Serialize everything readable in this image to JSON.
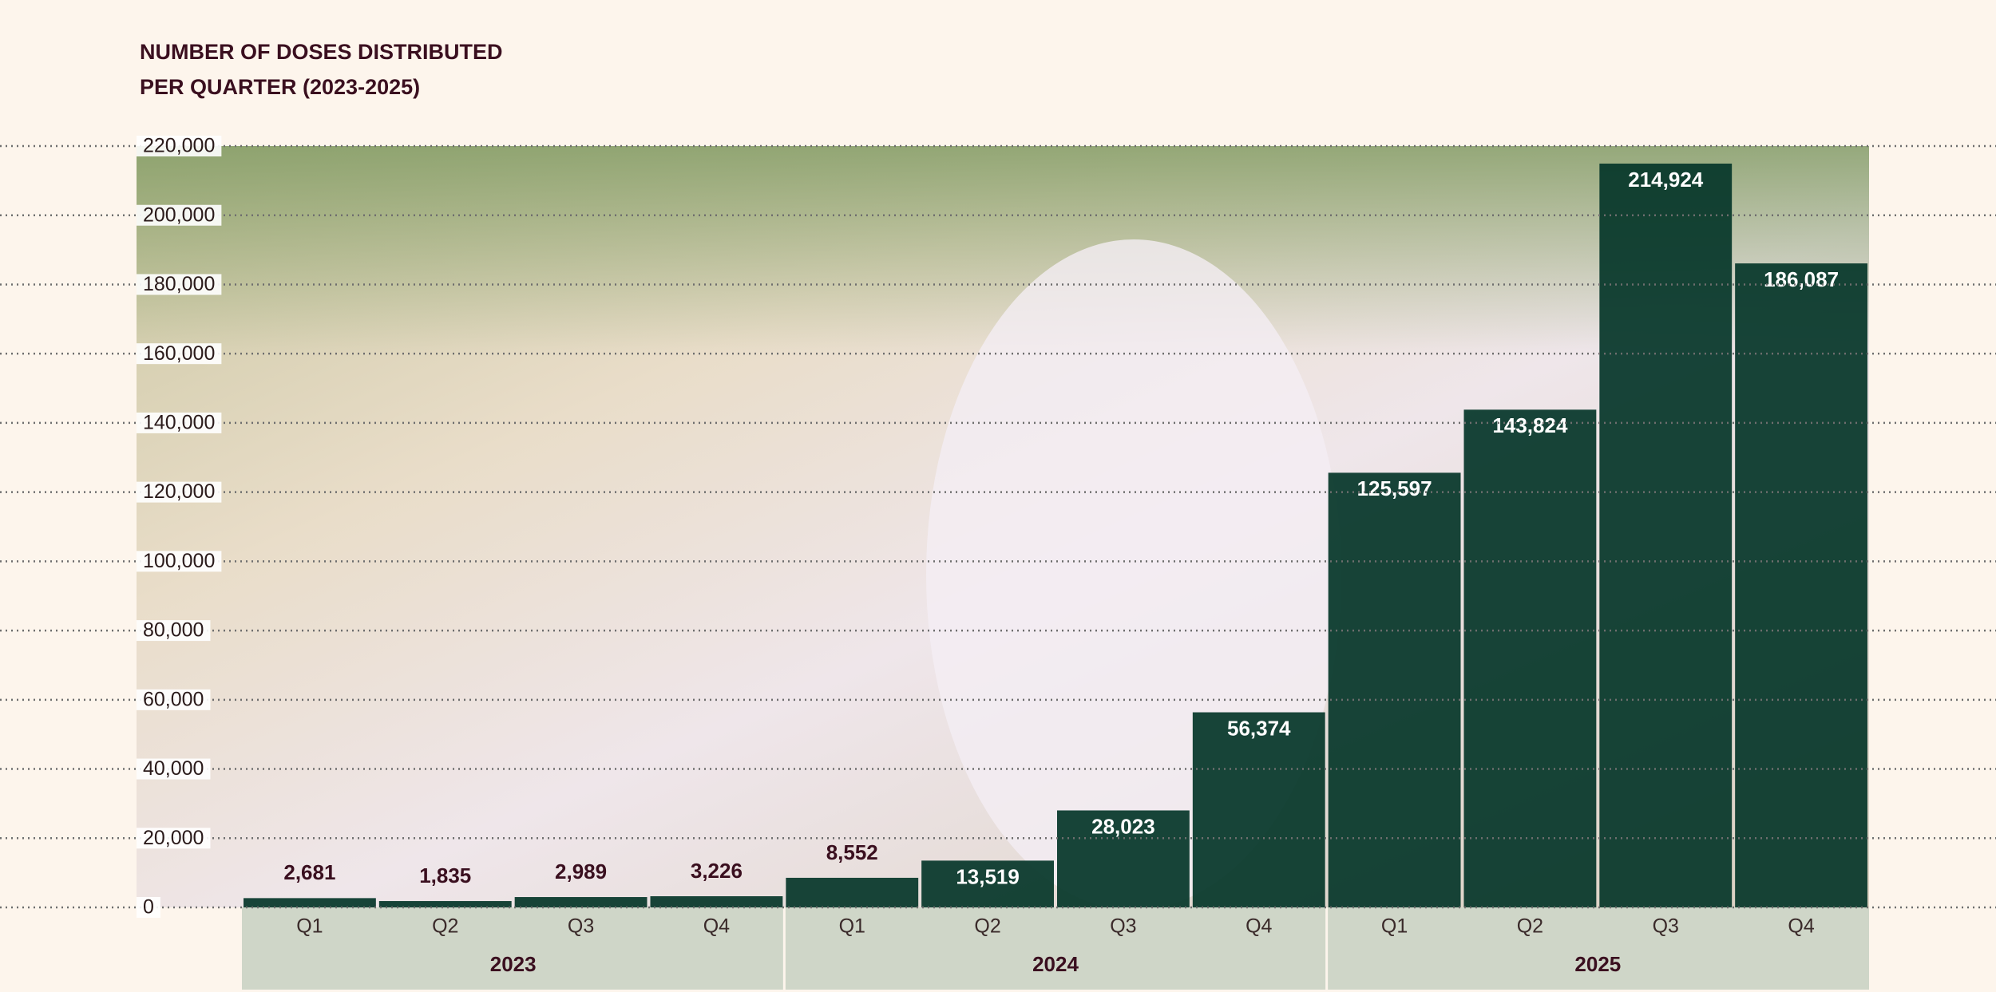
{
  "chart_data": {
    "type": "bar",
    "title": "NUMBER OF DOSES DISTRIBUTED",
    "subtitle": "PER QUARTER (2023-2025)",
    "categories": [
      "Q1",
      "Q2",
      "Q3",
      "Q4",
      "Q1",
      "Q2",
      "Q3",
      "Q4",
      "Q1",
      "Q2",
      "Q3",
      "Q4"
    ],
    "groups": [
      "2023",
      "2024",
      "2025"
    ],
    "values": [
      2681,
      1835,
      2989,
      3226,
      8552,
      13519,
      28023,
      56374,
      125597,
      143824,
      214924,
      186087
    ],
    "value_labels": [
      "2,681",
      "1,835",
      "2,989",
      "3,226",
      "8,552",
      "13,519",
      "28,023",
      "56,374",
      "125,597",
      "143,824",
      "214,924",
      "186,087"
    ],
    "color": "#06372a",
    "ylim": [
      0,
      220000
    ],
    "yticks": [
      0,
      {
        "value": 20000,
        "label": "20,000"
      },
      {
        "value": 40000,
        "label": "40,000"
      },
      {
        "value": 60000,
        "label": "60,000"
      },
      {
        "value": 80000,
        "label": "80,000"
      },
      {
        "value": 100000,
        "label": "100,000"
      },
      {
        "value": 120000,
        "label": "120,000"
      },
      {
        "value": 140000,
        "label": "140,000"
      },
      {
        "value": 160000,
        "label": "160,000"
      },
      {
        "value": 180000,
        "label": "180,000"
      },
      {
        "value": 200000,
        "label": "200,000"
      },
      {
        "value": 220000,
        "label": "220,000"
      }
    ],
    "grid": true
  }
}
